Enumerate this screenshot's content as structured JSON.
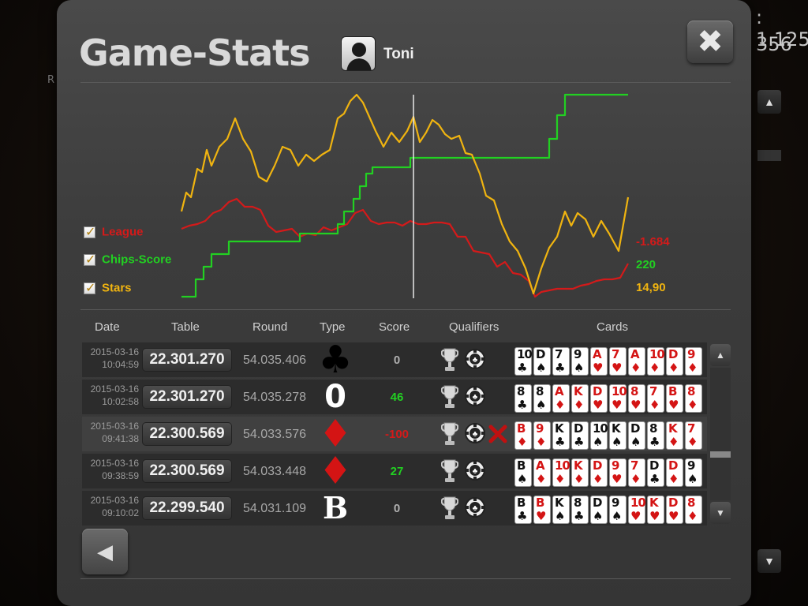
{
  "background": {
    "value1": ": 1.125",
    "value2": "356",
    "side_letter": "R"
  },
  "header": {
    "title": "Game-Stats",
    "username": "Toni",
    "close_icon": "✖"
  },
  "chart_data": {
    "type": "line",
    "title": "",
    "series": [
      {
        "name": "League",
        "color": "#d41a1a",
        "end_value": "-1.684"
      },
      {
        "name": "Chips-Score",
        "color": "#22d022",
        "end_value": "220"
      },
      {
        "name": "Stars",
        "color": "#f0b410",
        "end_value": "14,90"
      }
    ],
    "grid": false,
    "legend_position": "left"
  },
  "table": {
    "headers": [
      "Date",
      "Table",
      "Round",
      "Type",
      "Score",
      "Qualifiers",
      "Cards"
    ],
    "rows": [
      {
        "date": "2015-03-16",
        "time": "10:04:59",
        "table": "22.301.270",
        "round": "54.035.406",
        "type": "♣",
        "type_kind": "suit-black",
        "score": "0",
        "score_color": "#b0b0b0",
        "qualifiers": [
          "trophy-icon",
          "chip-icon"
        ],
        "cards": [
          [
            "10",
            "♣",
            "blk"
          ],
          [
            "D",
            "♠",
            "blk"
          ],
          [
            "7",
            "♣",
            "blk"
          ],
          [
            "9",
            "♠",
            "blk"
          ],
          [
            "A",
            "♥",
            "red"
          ],
          [
            "7",
            "♥",
            "red"
          ],
          [
            "A",
            "♦",
            "red"
          ],
          [
            "10",
            "♦",
            "red"
          ],
          [
            "D",
            "♦",
            "red"
          ],
          [
            "9",
            "♦",
            "red"
          ]
        ]
      },
      {
        "date": "2015-03-16",
        "time": "10:02:58",
        "table": "22.301.270",
        "round": "54.035.278",
        "type": "0",
        "type_kind": "num",
        "score": "46",
        "score_color": "#22d022",
        "qualifiers": [
          "trophy-icon",
          "chip-icon"
        ],
        "cards": [
          [
            "8",
            "♣",
            "blk"
          ],
          [
            "8",
            "♠",
            "blk"
          ],
          [
            "A",
            "♦",
            "red"
          ],
          [
            "K",
            "♦",
            "red"
          ],
          [
            "D",
            "♥",
            "red"
          ],
          [
            "10",
            "♥",
            "red"
          ],
          [
            "8",
            "♥",
            "red"
          ],
          [
            "7",
            "♦",
            "red"
          ],
          [
            "B",
            "♥",
            "red"
          ],
          [
            "8",
            "♦",
            "red"
          ]
        ]
      },
      {
        "date": "2015-03-16",
        "time": "09:41:38",
        "table": "22.300.569",
        "round": "54.033.576",
        "type": "♦",
        "type_kind": "suit-red",
        "score": "-100",
        "score_color": "#d41a1a",
        "qualifiers": [
          "trophy-icon",
          "chip-icon",
          "x-icon"
        ],
        "cards": [
          [
            "B",
            "♦",
            "red"
          ],
          [
            "9",
            "♦",
            "red"
          ],
          [
            "K",
            "♣",
            "blk"
          ],
          [
            "D",
            "♣",
            "blk"
          ],
          [
            "10",
            "♠",
            "blk"
          ],
          [
            "K",
            "♠",
            "blk"
          ],
          [
            "D",
            "♠",
            "blk"
          ],
          [
            "8",
            "♣",
            "blk"
          ],
          [
            "K",
            "♦",
            "red"
          ],
          [
            "7",
            "♦",
            "red"
          ]
        ]
      },
      {
        "date": "2015-03-16",
        "time": "09:38:59",
        "table": "22.300.569",
        "round": "54.033.448",
        "type": "♦",
        "type_kind": "suit-red",
        "score": "27",
        "score_color": "#22d022",
        "qualifiers": [
          "trophy-icon",
          "chip-icon"
        ],
        "cards": [
          [
            "B",
            "♠",
            "blk"
          ],
          [
            "A",
            "♦",
            "red"
          ],
          [
            "10",
            "♦",
            "red"
          ],
          [
            "K",
            "♦",
            "red"
          ],
          [
            "D",
            "♦",
            "red"
          ],
          [
            "9",
            "♥",
            "red"
          ],
          [
            "7",
            "♦",
            "red"
          ],
          [
            "D",
            "♣",
            "blk"
          ],
          [
            "D",
            "♦",
            "red"
          ],
          [
            "9",
            "♠",
            "blk"
          ]
        ]
      },
      {
        "date": "2015-03-16",
        "time": "09:10:02",
        "table": "22.299.540",
        "round": "54.031.109",
        "type": "B",
        "type_kind": "letter",
        "score": "0",
        "score_color": "#b0b0b0",
        "qualifiers": [
          "trophy-icon",
          "chip-icon"
        ],
        "cards": [
          [
            "B",
            "♣",
            "blk"
          ],
          [
            "B",
            "♥",
            "red"
          ],
          [
            "K",
            "♠",
            "blk"
          ],
          [
            "8",
            "♣",
            "blk"
          ],
          [
            "D",
            "♠",
            "blk"
          ],
          [
            "9",
            "♠",
            "blk"
          ],
          [
            "10",
            "♥",
            "red"
          ],
          [
            "K",
            "♥",
            "red"
          ],
          [
            "D",
            "♥",
            "red"
          ],
          [
            "8",
            "♦",
            "red"
          ]
        ]
      }
    ]
  },
  "nav": {
    "back_icon": "◀",
    "scroll_up_icon": "▲",
    "scroll_down_icon": "▼"
  }
}
